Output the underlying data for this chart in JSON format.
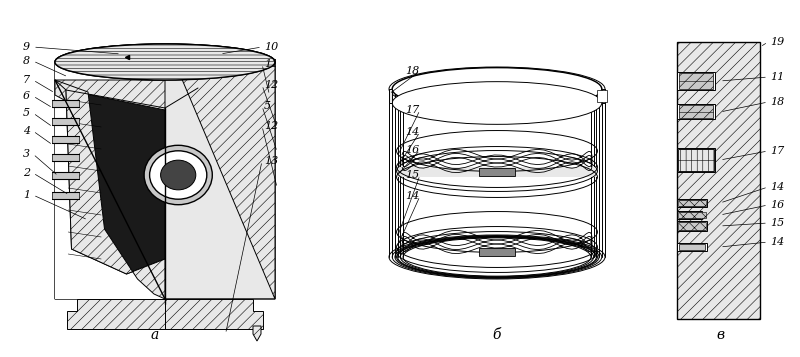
{
  "figsize": [
    8.0,
    3.57
  ],
  "dpi": 100,
  "background": "#ffffff",
  "label_a": "а",
  "label_b": "б",
  "label_v": "в",
  "label_size": 8,
  "hatch_color": "#000000"
}
